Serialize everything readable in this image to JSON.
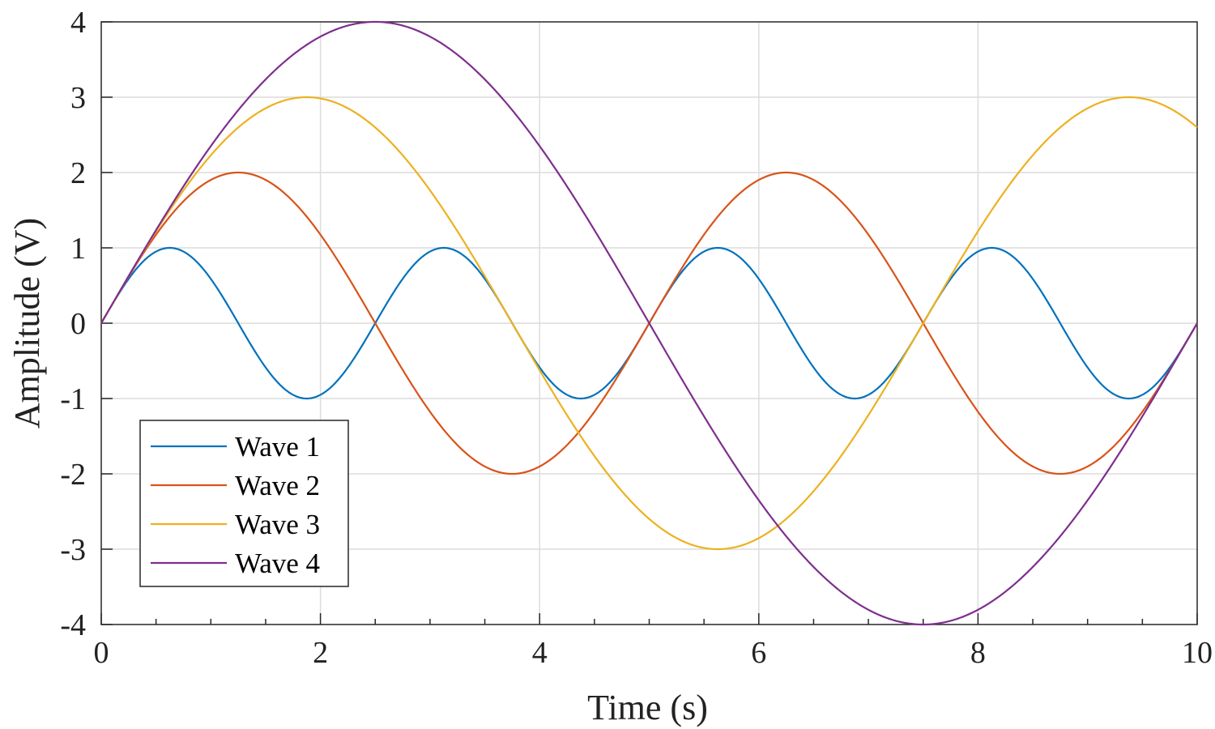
{
  "chart_data": {
    "type": "line",
    "title": "",
    "xlabel": "Time (s)",
    "ylabel": "Amplitude (V)",
    "xlim": [
      0,
      10
    ],
    "ylim": [
      -4,
      4
    ],
    "xticks": [
      0,
      2,
      4,
      6,
      8,
      10
    ],
    "xtick_labels": [
      "0",
      "2",
      "4",
      "6",
      "8",
      "10"
    ],
    "xminor_step": 0.5,
    "yticks": [
      -4,
      -3,
      -2,
      -1,
      0,
      1,
      2,
      3,
      4
    ],
    "ytick_labels": [
      "-4",
      "-3",
      "-2",
      "-1",
      "0",
      "1",
      "2",
      "3",
      "4"
    ],
    "grid": true,
    "legend_position": "bottom-left",
    "x_range": [
      0,
      10
    ],
    "series": [
      {
        "name": "Wave 1",
        "color": "#0072BD",
        "amplitude": 1,
        "period_s": 2.5
      },
      {
        "name": "Wave 2",
        "color": "#D95319",
        "amplitude": 2,
        "period_s": 5
      },
      {
        "name": "Wave 3",
        "color": "#EDB120",
        "amplitude": 3,
        "period_s": 7.5
      },
      {
        "name": "Wave 4",
        "color": "#7E2F8E",
        "amplitude": 4,
        "period_s": 10
      }
    ]
  }
}
